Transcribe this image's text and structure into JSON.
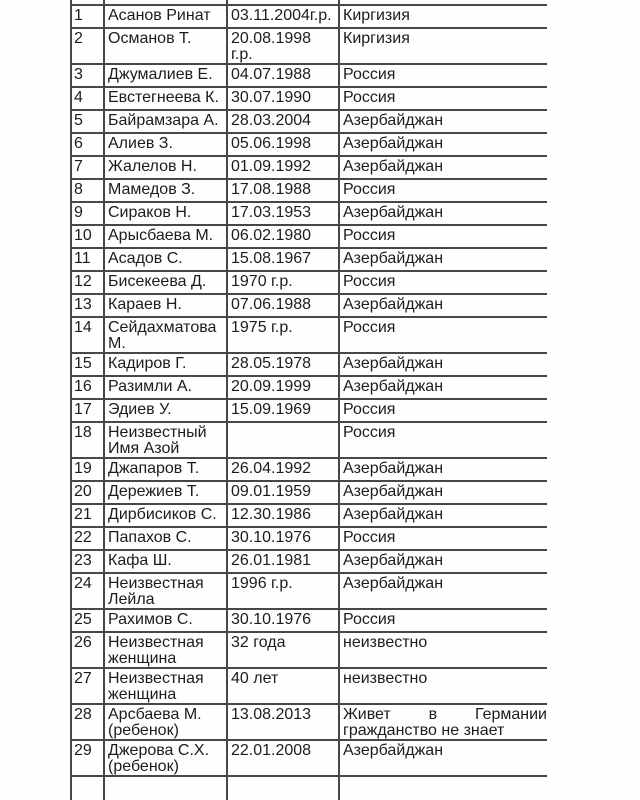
{
  "table": {
    "column_semantics": [
      "row_number",
      "name",
      "birth_date",
      "country"
    ],
    "rows": [
      {
        "num": "1",
        "name": "Асанов Ринат",
        "dob": "03.11.2004г.р.",
        "country": "Киргизия"
      },
      {
        "num": "2",
        "name": "Османов Т.",
        "dob": "20.08.1998 г.р.",
        "country": "Киргизия"
      },
      {
        "num": "3",
        "name": "Джумалиев Е.",
        "dob": "04.07.1988",
        "country": "Россия"
      },
      {
        "num": "4",
        "name": "Евстегнеева К.",
        "dob": "30.07.1990",
        "country": "Россия"
      },
      {
        "num": "5",
        "name": "Байрамзара А.",
        "dob": "28.03.2004",
        "country": "Азербайджан"
      },
      {
        "num": "6",
        "name": "Алиев З.",
        "dob": "05.06.1998",
        "country": "Азербайджан"
      },
      {
        "num": "7",
        "name": "Жалелов Н.",
        "dob": "01.09.1992",
        "country": "Азербайджан"
      },
      {
        "num": "8",
        "name": "Мамедов З.",
        "dob": "17.08.1988",
        "country": "Россия"
      },
      {
        "num": "9",
        "name": "Сираков Н.",
        "dob": "17.03.1953",
        "country": "Азербайджан"
      },
      {
        "num": "10",
        "name": "Арысбаева М.",
        "dob": "06.02.1980",
        "country": "Россия"
      },
      {
        "num": "11",
        "name": "Асадов С.",
        "dob": "15.08.1967",
        "country": "Азербайджан"
      },
      {
        "num": "12",
        "name": "Бисекеева Д.",
        "dob": "1970 г.р.",
        "country": "Россия"
      },
      {
        "num": "13",
        "name": "Караев Н.",
        "dob": "07.06.1988",
        "country": "Азербайджан"
      },
      {
        "num": "14",
        "name": "Сейдахматова М.",
        "dob": "1975 г.р.",
        "country": "Россия"
      },
      {
        "num": "15",
        "name": "Кадиров Г.",
        "dob": "28.05.1978",
        "country": "Азербайджан"
      },
      {
        "num": "16",
        "name": "Разимли А.",
        "dob": "20.09.1999",
        "country": "Азербайджан"
      },
      {
        "num": "17",
        "name": "Эдиев У.",
        "dob": "15.09.1969",
        "country": "Россия"
      },
      {
        "num": "18",
        "name": "Неизвестный Имя Азой",
        "dob": "",
        "country": "Россия"
      },
      {
        "num": "19",
        "name": "Джапаров Т.",
        "dob": "26.04.1992",
        "country": "Азербайджан"
      },
      {
        "num": "20",
        "name": "Дережиев Т.",
        "dob": "09.01.1959",
        "country": "Азербайджан"
      },
      {
        "num": "21",
        "name": "Дирбисиков С.",
        "dob": "12.30.1986",
        "country": "Азербайджан"
      },
      {
        "num": "22",
        "name": "Папахов С.",
        "dob": "30.10.1976",
        "country": "Россия"
      },
      {
        "num": "23",
        "name": "Кафа Ш.",
        "dob": "26.01.1981",
        "country": "Азербайджан"
      },
      {
        "num": "24",
        "name": "Неизвестная Лейла",
        "dob": "1996 г.р.",
        "country": "Азербайджан"
      },
      {
        "num": "25",
        "name": "Рахимов С.",
        "dob": "30.10.1976",
        "country": "Россия"
      },
      {
        "num": "26",
        "name": "Неизвестная женщина",
        "dob": "32 года",
        "country": "неизвестно"
      },
      {
        "num": "27",
        "name": "Неизвестная женщина",
        "dob": "40 лет",
        "country": "неизвестно"
      },
      {
        "num": "28",
        "name": "Арсбаева М. (ребенок)",
        "dob": "13.08.2013",
        "country": "Живет в Германии",
        "country_line2": "гражданство не знает",
        "country_justified": true
      },
      {
        "num": "29",
        "name": "Джерова С.Х. (ребенок)",
        "dob": "22.01.2008",
        "country": "Азербайджан"
      }
    ]
  },
  "colors": {
    "border": "#474747",
    "text": "#1c1c1c",
    "background": "#fefefe"
  }
}
